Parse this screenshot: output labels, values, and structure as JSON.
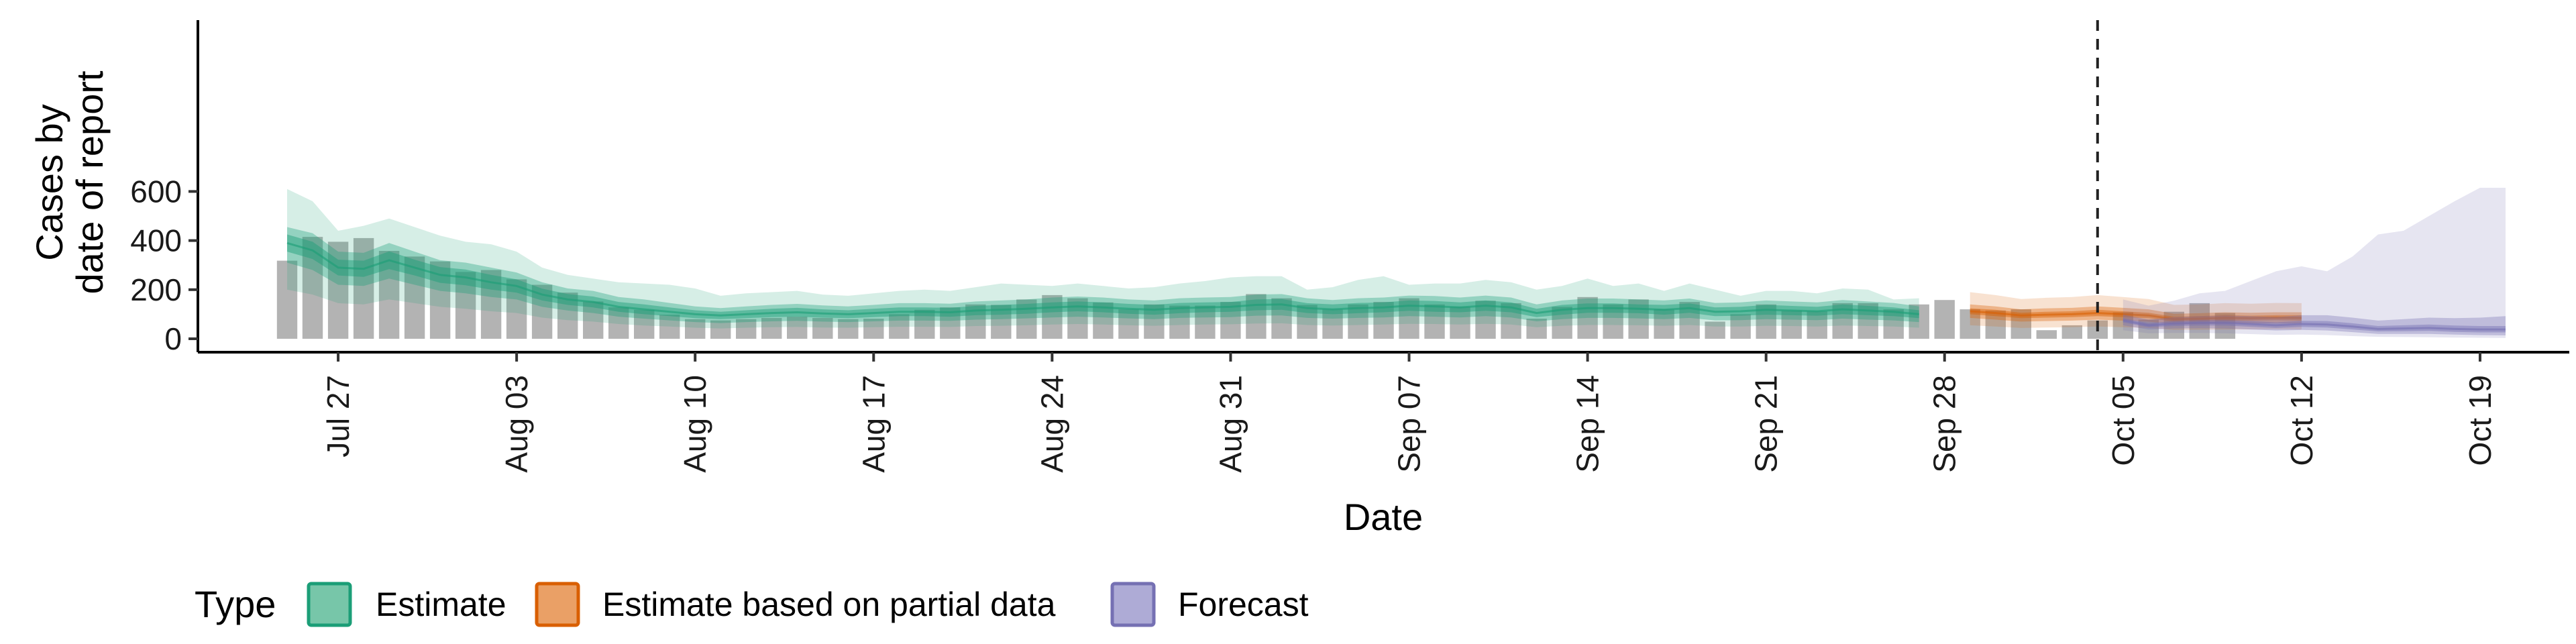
{
  "chart_data": {
    "type": "bar",
    "xlabel": "Date",
    "ylabel_lines": [
      "Cases by",
      "date of report"
    ],
    "y_ticks": [
      0,
      200,
      400,
      600
    ],
    "y_range": [
      0,
      640
    ],
    "x_ticks": [
      "Jul 27",
      "Aug 03",
      "Aug 10",
      "Aug 17",
      "Aug 24",
      "Aug 31",
      "Sep 07",
      "Sep 14",
      "Sep 21",
      "Sep 28",
      "Oct 05",
      "Oct 12",
      "Oct 19"
    ],
    "x_ticks_day": [
      0,
      7,
      14,
      21,
      28,
      35,
      42,
      49,
      56,
      63,
      70,
      77,
      84
    ],
    "x_range_day": [
      -5.5,
      87.5
    ],
    "start_date": "Jul 26",
    "vline_day": 69,
    "reported_cases": [
      318,
      415,
      395,
      410,
      358,
      335,
      315,
      272,
      280,
      242,
      220,
      188,
      152,
      128,
      118,
      98,
      80,
      75,
      80,
      85,
      90,
      85,
      80,
      82,
      100,
      118,
      128,
      140,
      138,
      160,
      178,
      165,
      148,
      120,
      140,
      135,
      135,
      150,
      182,
      165,
      138,
      120,
      140,
      150,
      165,
      140,
      130,
      155,
      145,
      82,
      130,
      170,
      140,
      160,
      120,
      150,
      70,
      100,
      140,
      115,
      112,
      145,
      145,
      120,
      140,
      158,
      120,
      115,
      120,
      35,
      55,
      75,
      108,
      78,
      110,
      145,
      105
    ],
    "series": [
      {
        "name": "Estimate",
        "color": "#1b9e77",
        "start_day": -2,
        "median": [
          390,
          360,
          290,
          285,
          320,
          290,
          260,
          250,
          230,
          215,
          180,
          160,
          150,
          130,
          120,
          110,
          100,
          95,
          100,
          105,
          108,
          103,
          100,
          105,
          110,
          110,
          108,
          115,
          118,
          122,
          128,
          132,
          128,
          122,
          118,
          125,
          128,
          130,
          138,
          140,
          125,
          120,
          125,
          128,
          135,
          132,
          128,
          135,
          128,
          105,
          118,
          125,
          125,
          122,
          118,
          125,
          110,
          112,
          118,
          115,
          112,
          120,
          115,
          110,
          100
        ],
        "bands": [
          {
            "lo": [
              355,
              325,
              258,
              252,
              284,
              258,
              228,
              218,
              200,
              188,
              156,
              138,
              128,
              110,
              100,
              92,
              84,
              80,
              84,
              88,
              90,
              86,
              84,
              88,
              92,
              92,
              90,
              96,
              98,
              102,
              108,
              112,
              108,
              102,
              98,
              104,
              108,
              110,
              116,
              118,
              105,
              100,
              104,
              108,
              114,
              110,
              108,
              114,
              108,
              88,
              98,
              106,
              106,
              104,
              98,
              106,
              92,
              94,
              98,
              96,
              94,
              100,
              96,
              92,
              84
            ],
            "hi": [
              425,
              395,
              322,
              318,
              356,
              322,
              292,
              282,
              260,
              242,
              204,
              182,
              172,
              150,
              140,
              128,
              116,
              110,
              116,
              122,
              126,
              120,
              116,
              122,
              128,
              128,
              126,
              134,
              138,
              142,
              148,
              152,
              148,
              142,
              138,
              146,
              148,
              150,
              160,
              162,
              145,
              140,
              146,
              148,
              156,
              154,
              148,
              156,
              148,
              122,
              138,
              144,
              144,
              140,
              138,
              144,
              128,
              130,
              138,
              134,
              130,
              140,
              134,
              128,
              116
            ]
          },
          {
            "lo": [
              310,
              280,
              220,
              215,
              245,
              220,
              195,
              185,
              170,
              160,
              130,
              115,
              105,
              90,
              82,
              75,
              68,
              64,
              68,
              71,
              73,
              70,
              68,
              71,
              74,
              74,
              73,
              78,
              80,
              83,
              87,
              90,
              87,
              83,
              80,
              85,
              87,
              88,
              94,
              95,
              85,
              82,
              85,
              87,
              92,
              90,
              87,
              92,
              87,
              71,
              80,
              85,
              85,
              83,
              80,
              85,
              75,
              76,
              80,
              78,
              76,
              82,
              78,
              75,
              68
            ],
            "hi": [
              455,
              430,
              355,
              350,
              390,
              355,
              320,
              310,
              290,
              270,
              230,
              205,
              195,
              170,
              160,
              146,
              132,
              125,
              132,
              138,
              142,
              136,
              132,
              138,
              145,
              145,
              143,
              152,
              156,
              160,
              168,
              172,
              168,
              160,
              156,
              165,
              168,
              170,
              180,
              182,
              165,
              158,
              165,
              168,
              176,
              174,
              168,
              176,
              168,
              140,
              156,
              164,
              164,
              160,
              156,
              164,
              146,
              148,
              156,
              152,
              148,
              158,
              152,
              146,
              132
            ]
          },
          {
            "lo": [
              200,
              180,
              145,
              140,
              160,
              145,
              130,
              122,
              112,
              105,
              86,
              76,
              70,
              60,
              54,
              50,
              45,
              42,
              45,
              47,
              48,
              46,
              45,
              47,
              49,
              49,
              48,
              52,
              53,
              55,
              58,
              60,
              58,
              55,
              53,
              56,
              58,
              59,
              62,
              63,
              56,
              54,
              56,
              58,
              61,
              60,
              58,
              61,
              58,
              47,
              53,
              56,
              56,
              55,
              53,
              56,
              50,
              50,
              53,
              52,
              50,
              54,
              52,
              50,
              45
            ],
            "hi": [
              610,
              560,
              440,
              460,
              490,
              455,
              420,
              395,
              385,
              355,
              290,
              260,
              245,
              230,
              225,
              220,
              205,
              175,
              185,
              190,
              195,
              180,
              175,
              185,
              195,
              200,
              195,
              210,
              225,
              220,
              215,
              225,
              215,
              205,
              210,
              225,
              235,
              250,
              255,
              255,
              200,
              210,
              240,
              255,
              220,
              225,
              225,
              240,
              230,
              200,
              215,
              245,
              215,
              225,
              195,
              225,
              200,
              175,
              195,
              195,
              185,
              205,
              200,
              160,
              165
            ]
          }
        ]
      },
      {
        "name": "Estimate based on partial data",
        "color": "#d95f02",
        "start_day": 64,
        "median": [
          112,
          105,
          95,
          98,
          100,
          105,
          100,
          95,
          80,
          82,
          85,
          84,
          86,
          85
        ],
        "bands": [
          {
            "lo": [
              100,
              92,
              84,
              86,
              88,
              92,
              88,
              84,
              70,
              72,
              74,
              74,
              76,
              74
            ],
            "hi": [
              124,
              118,
              106,
              110,
              112,
              118,
              112,
              106,
              90,
              92,
              96,
              94,
              96,
              96
            ]
          },
          {
            "lo": [
              85,
              78,
              70,
              72,
              74,
              78,
              74,
              70,
              58,
              60,
              62,
              62,
              63,
              62
            ],
            "hi": [
              140,
              132,
              120,
              124,
              126,
              132,
              126,
              120,
              102,
              104,
              108,
              106,
              108,
              108
            ]
          },
          {
            "lo": [
              55,
              50,
              44,
              46,
              47,
              50,
              47,
              44,
              36,
              37,
              38,
              38,
              39,
              38
            ],
            "hi": [
              190,
              178,
              162,
              167,
              170,
              178,
              170,
              162,
              138,
              140,
              145,
              143,
              146,
              145
            ]
          }
        ]
      },
      {
        "name": "Forecast",
        "color": "#7570b3",
        "start_day": 70,
        "median": [
          75,
          55,
          62,
          65,
          65,
          60,
          55,
          60,
          58,
          50,
          40,
          42,
          44,
          40,
          38,
          38
        ],
        "bands": [
          {
            "lo": [
              66,
              47,
              52,
              54,
              54,
              49,
              44,
              48,
              46,
              38,
              30,
              31,
              32,
              28,
              26,
              26
            ],
            "hi": [
              84,
              64,
              72,
              76,
              76,
              72,
              67,
              73,
              72,
              63,
              52,
              55,
              58,
              54,
              52,
              52
            ]
          },
          {
            "lo": [
              55,
              38,
              42,
              43,
              42,
              38,
              34,
              36,
              34,
              27,
              20,
              20,
              20,
              17,
              15,
              14
            ],
            "hi": [
              98,
              78,
              88,
              92,
              95,
              92,
              88,
              96,
              96,
              86,
              74,
              80,
              86,
              84,
              86,
              92
            ]
          },
          {
            "lo": [
              35,
              22,
              24,
              24,
              22,
              19,
              16,
              17,
              15,
              11,
              8,
              7,
              6,
              5,
              4,
              3
            ],
            "hi": [
              160,
              135,
              155,
              185,
              195,
              235,
              275,
              295,
              275,
              335,
              425,
              440,
              500,
              560,
              615,
              615
            ]
          }
        ]
      }
    ],
    "legend": {
      "title": "Type",
      "position": "bottom",
      "items": [
        {
          "label": "Estimate",
          "fill": "#77c6a9",
          "stroke": "#1b9e77"
        },
        {
          "label": "Estimate based on partial data",
          "fill": "#eaa066",
          "stroke": "#d95f02"
        },
        {
          "label": "Forecast",
          "fill": "#aeabd6",
          "stroke": "#7570b3"
        }
      ]
    },
    "bar_color": "#b3b3b3"
  }
}
